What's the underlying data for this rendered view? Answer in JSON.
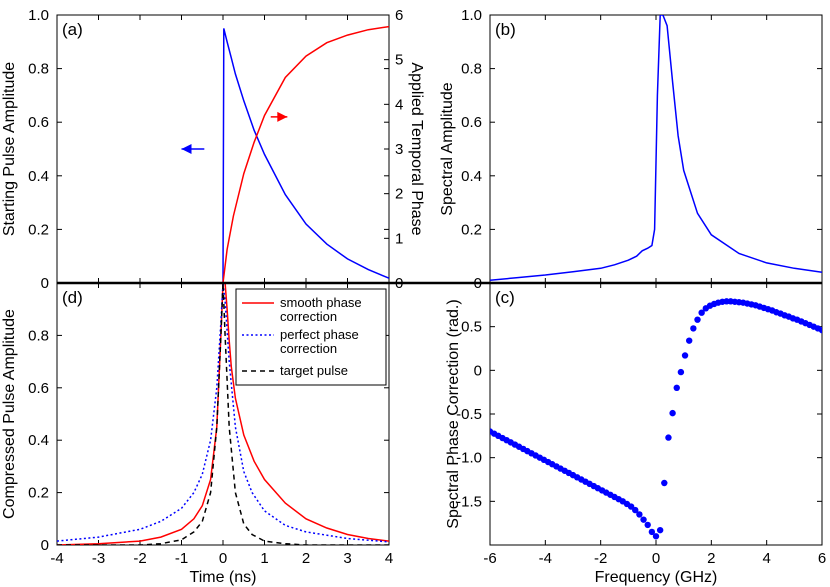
{
  "chart_data": [
    {
      "id": "a",
      "panel_label": "(a)",
      "type": "line",
      "xlim": [
        -4,
        4
      ],
      "ylim": [
        0,
        1.0
      ],
      "ylabel": "Starting Pulse Amplitude",
      "y2lim": [
        0,
        6
      ],
      "y2label": "Applied Temporal Phase",
      "yticks": [
        "0",
        "0.2",
        "0.4",
        "0.6",
        "0.8",
        "1.0"
      ],
      "y2ticks": [
        "0",
        "1",
        "2",
        "3",
        "4",
        "5",
        "6"
      ],
      "series": [
        {
          "color": "#0000ff",
          "axis": "left",
          "x": [
            -4,
            0,
            0.02,
            0.1,
            0.2,
            0.3,
            0.5,
            0.75,
            1.0,
            1.5,
            2.0,
            2.5,
            3.0,
            3.5,
            4.0
          ],
          "y": [
            0,
            0,
            0.95,
            0.9,
            0.84,
            0.78,
            0.68,
            0.57,
            0.48,
            0.33,
            0.22,
            0.145,
            0.09,
            0.05,
            0.018
          ]
        },
        {
          "color": "#ff0000",
          "axis": "right",
          "x": [
            -4,
            0,
            0.1,
            0.25,
            0.5,
            0.75,
            1.0,
            1.5,
            2.0,
            2.5,
            3.0,
            3.5,
            4.0
          ],
          "y": [
            0,
            0,
            0.75,
            1.5,
            2.45,
            3.15,
            3.75,
            4.6,
            5.08,
            5.38,
            5.55,
            5.67,
            5.74
          ]
        }
      ],
      "arrows": [
        {
          "direction": "left",
          "color": "#0000ff",
          "x_from": -0.45,
          "x_to": -1.0,
          "y": 0.5
        },
        {
          "direction": "right",
          "color": "#ff0000",
          "x_from": 1.15,
          "x_to": 1.55,
          "y": 0.62
        }
      ]
    },
    {
      "id": "b",
      "panel_label": "(b)",
      "type": "line",
      "xlim": [
        -6,
        6
      ],
      "ylim": [
        0,
        1.0
      ],
      "ylabel": "Spectral Amplitude",
      "yticks": [
        "0",
        "0.2",
        "0.4",
        "0.6",
        "0.8",
        "1.0"
      ],
      "series": [
        {
          "color": "#0000ff",
          "x": [
            -6,
            -5,
            -4,
            -3,
            -2,
            -1.5,
            -1,
            -0.7,
            -0.5,
            -0.3,
            -0.15,
            -0.05,
            0.05,
            0.15,
            0.25,
            0.4,
            0.6,
            0.8,
            1.0,
            1.5,
            2.0,
            3.0,
            4.0,
            5.0,
            6.0
          ],
          "y": [
            0.01,
            0.02,
            0.03,
            0.042,
            0.055,
            0.068,
            0.085,
            0.1,
            0.12,
            0.13,
            0.14,
            0.2,
            0.7,
            1.0,
            1.0,
            0.96,
            0.75,
            0.55,
            0.42,
            0.26,
            0.18,
            0.11,
            0.075,
            0.055,
            0.04
          ]
        }
      ]
    },
    {
      "id": "d",
      "panel_label": "(d)",
      "type": "line",
      "xlim": [
        -4,
        4
      ],
      "ylim": [
        0,
        1.0
      ],
      "xlabel": "Time (ns)",
      "ylabel": "Compressed Pulse Amplitude",
      "xticks": [
        "-4",
        "-3",
        "-2",
        "-1",
        "0",
        "1",
        "2",
        "3",
        "4"
      ],
      "yticks": [
        "0",
        "0.2",
        "0.4",
        "0.6",
        "0.8"
      ],
      "legend": [
        "smooth phase correction",
        "perfect phase correction",
        "target pulse"
      ],
      "series": [
        {
          "name": "smooth phase correction",
          "color": "#ff0000",
          "dash": "solid",
          "x": [
            -4,
            -3,
            -2,
            -1.5,
            -1,
            -0.7,
            -0.5,
            -0.3,
            -0.15,
            -0.05,
            0.0,
            0.05,
            0.1,
            0.15,
            0.2,
            0.3,
            0.5,
            0.75,
            1.0,
            1.5,
            2.0,
            2.5,
            3.0,
            3.5,
            4.0
          ],
          "y": [
            0.0,
            0.005,
            0.015,
            0.03,
            0.06,
            0.1,
            0.15,
            0.25,
            0.45,
            0.8,
            1.0,
            1.0,
            0.9,
            0.78,
            0.68,
            0.56,
            0.42,
            0.32,
            0.25,
            0.16,
            0.1,
            0.065,
            0.04,
            0.025,
            0.015
          ]
        },
        {
          "name": "perfect phase correction",
          "color": "#0000ff",
          "dash": "dotted",
          "x": [
            -4,
            -3,
            -2,
            -1.5,
            -1,
            -0.7,
            -0.5,
            -0.3,
            -0.15,
            -0.05,
            0.0,
            0.05,
            0.15,
            0.3,
            0.5,
            0.7,
            1.0,
            1.5,
            2.0,
            3.0,
            4.0
          ],
          "y": [
            0.015,
            0.03,
            0.06,
            0.09,
            0.14,
            0.2,
            0.27,
            0.4,
            0.6,
            0.85,
            1.0,
            0.93,
            0.7,
            0.45,
            0.28,
            0.2,
            0.13,
            0.075,
            0.05,
            0.025,
            0.012
          ]
        },
        {
          "name": "target pulse",
          "color": "#000000",
          "dash": "dashed",
          "x": [
            -4,
            -2,
            -1.5,
            -1,
            -0.7,
            -0.5,
            -0.3,
            -0.15,
            -0.05,
            0.0,
            0.05,
            0.15,
            0.3,
            0.5,
            0.7,
            1.0,
            1.5,
            2.0,
            4.0
          ],
          "y": [
            0.0,
            0.0,
            0.005,
            0.02,
            0.05,
            0.09,
            0.2,
            0.45,
            0.8,
            1.0,
            0.8,
            0.45,
            0.2,
            0.08,
            0.04,
            0.015,
            0.005,
            0.0,
            0.0
          ]
        }
      ]
    },
    {
      "id": "c",
      "panel_label": "(c)",
      "type": "scatter",
      "xlim": [
        -6,
        6
      ],
      "ylim": [
        -2.0,
        1.0
      ],
      "xlabel": "Frequency (GHz)",
      "ylabel": "Spectral Phase Correction (rad.)",
      "xticks": [
        "-6",
        "-4",
        "-2",
        "0",
        "2",
        "4",
        "6"
      ],
      "yticks": [
        "-1.5",
        "-1.0",
        "-0.5",
        "0",
        "0.5"
      ],
      "series": [
        {
          "color": "#0000ff",
          "x": [
            -6.0,
            -5.85,
            -5.7,
            -5.55,
            -5.4,
            -5.25,
            -5.1,
            -4.95,
            -4.8,
            -4.65,
            -4.5,
            -4.35,
            -4.2,
            -4.05,
            -3.9,
            -3.75,
            -3.6,
            -3.45,
            -3.3,
            -3.15,
            -3.0,
            -2.85,
            -2.7,
            -2.55,
            -2.4,
            -2.25,
            -2.1,
            -1.95,
            -1.8,
            -1.65,
            -1.5,
            -1.35,
            -1.2,
            -1.05,
            -0.9,
            -0.75,
            -0.6,
            -0.45,
            -0.3,
            -0.15,
            0.0,
            0.15,
            0.3,
            0.45,
            0.6,
            0.75,
            0.9,
            1.05,
            1.2,
            1.35,
            1.5,
            1.65,
            1.8,
            1.95,
            2.1,
            2.25,
            2.4,
            2.55,
            2.7,
            2.85,
            3.0,
            3.15,
            3.3,
            3.45,
            3.6,
            3.75,
            3.9,
            4.05,
            4.2,
            4.35,
            4.5,
            4.65,
            4.8,
            4.95,
            5.1,
            5.25,
            5.4,
            5.55,
            5.7,
            5.85,
            6.0
          ],
          "y": [
            -0.7,
            -0.725,
            -0.75,
            -0.775,
            -0.8,
            -0.825,
            -0.85,
            -0.875,
            -0.9,
            -0.925,
            -0.95,
            -0.975,
            -1.0,
            -1.025,
            -1.05,
            -1.075,
            -1.1,
            -1.125,
            -1.15,
            -1.175,
            -1.2,
            -1.225,
            -1.25,
            -1.275,
            -1.3,
            -1.325,
            -1.35,
            -1.375,
            -1.4,
            -1.425,
            -1.45,
            -1.475,
            -1.5,
            -1.53,
            -1.56,
            -1.6,
            -1.65,
            -1.71,
            -1.77,
            -1.85,
            -1.9,
            -1.83,
            -1.29,
            -0.77,
            -0.49,
            -0.2,
            -0.02,
            0.17,
            0.34,
            0.48,
            0.58,
            0.66,
            0.71,
            0.74,
            0.76,
            0.775,
            0.785,
            0.79,
            0.79,
            0.785,
            0.78,
            0.775,
            0.765,
            0.755,
            0.745,
            0.73,
            0.715,
            0.7,
            0.685,
            0.665,
            0.65,
            0.63,
            0.615,
            0.595,
            0.58,
            0.56,
            0.54,
            0.52,
            0.5,
            0.48,
            0.46
          ]
        }
      ]
    }
  ]
}
